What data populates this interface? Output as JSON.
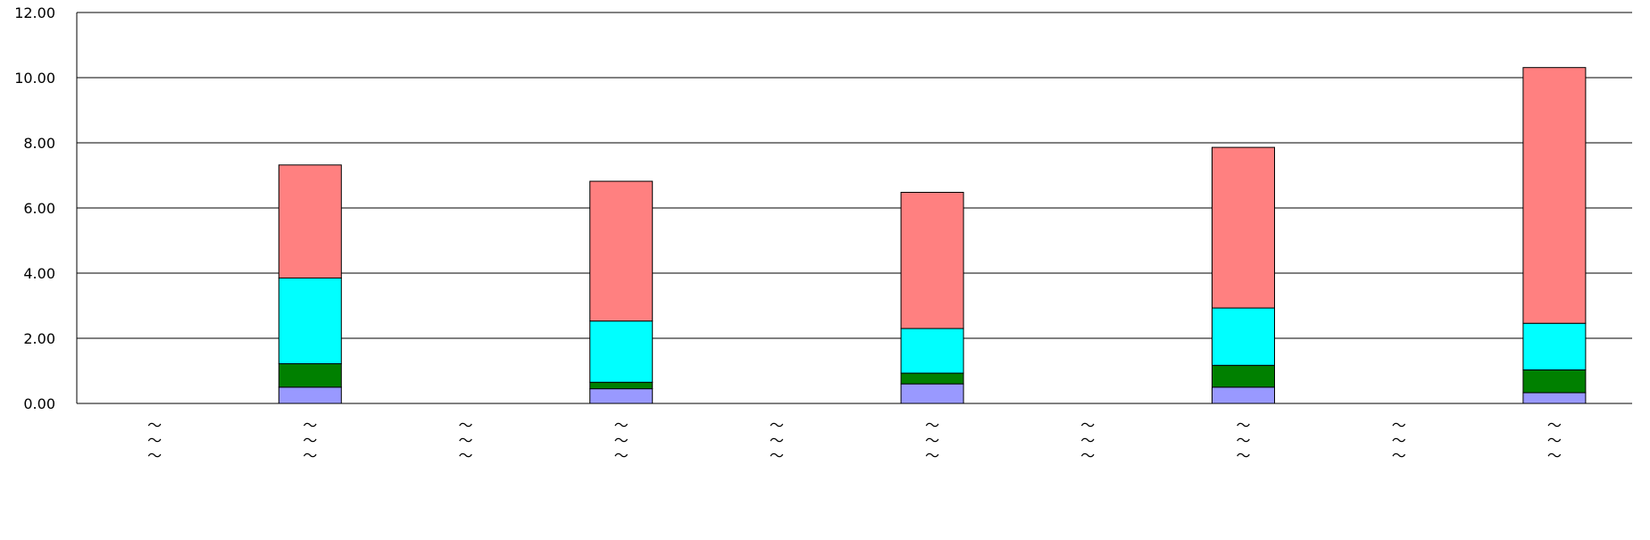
{
  "chart_data": {
    "type": "bar",
    "stacked": true,
    "categories": [
      "〜〜〜",
      "〜〜〜",
      "〜〜〜",
      "〜〜〜",
      "〜〜〜",
      "〜〜〜",
      "〜〜〜",
      "〜〜〜",
      "〜〜〜",
      "〜〜〜"
    ],
    "series": [
      {
        "color": "#9999ff",
        "values": [
          0,
          0.5,
          0,
          0.45,
          0,
          0.6,
          0,
          0.5,
          0,
          0.33
        ]
      },
      {
        "color": "#008000",
        "values": [
          0,
          0.72,
          0,
          0.2,
          0,
          0.33,
          0,
          0.67,
          0,
          0.7
        ]
      },
      {
        "color": "#00ffff",
        "values": [
          0,
          2.63,
          0,
          1.88,
          0,
          1.37,
          0,
          1.76,
          0,
          1.43
        ]
      },
      {
        "color": "#ff8080",
        "values": [
          0,
          3.47,
          0,
          4.29,
          0,
          4.18,
          0,
          4.93,
          0,
          7.85
        ]
      }
    ],
    "y_ticks": [
      "0.00",
      "2.00",
      "4.00",
      "6.00",
      "8.00",
      "10.00",
      "12.00"
    ],
    "ylim": [
      0,
      12
    ],
    "grid": true,
    "legend": "none"
  }
}
